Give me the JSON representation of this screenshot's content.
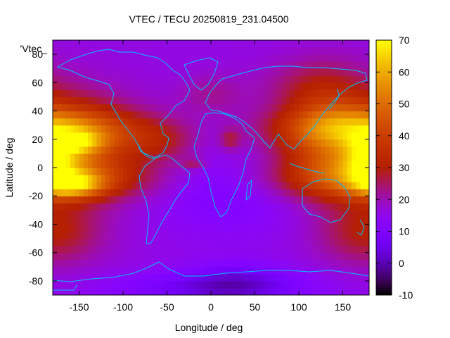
{
  "chart_data": {
    "type": "heatmap",
    "title": "VTEC / TECU 20250819_231.04500",
    "xlabel": "Longitude / deg",
    "ylabel": "Latitude / deg",
    "legend_label": "'Vtec_",
    "xlim": [
      -180,
      180
    ],
    "ylim": [
      -90,
      90
    ],
    "x_ticks": [
      -150,
      -100,
      -50,
      0,
      50,
      100,
      150
    ],
    "y_ticks": [
      -80,
      -60,
      -40,
      -20,
      0,
      20,
      40,
      60,
      80
    ],
    "colorbar": {
      "range": [
        -10,
        70
      ],
      "ticks": [
        -10,
        0,
        10,
        20,
        30,
        40,
        50,
        60,
        70
      ]
    },
    "colormap": "gnuplot-pm3d",
    "coastline_color": "#00c0ff",
    "grid": false,
    "grid_step_deg": 5,
    "features": [
      {
        "kind": "background",
        "value": 16
      },
      {
        "kind": "blob",
        "lon": -180,
        "lat": 28,
        "sx": 70,
        "sy": 10,
        "amp": 22
      },
      {
        "kind": "blob",
        "lon": -180,
        "lat": -8,
        "sx": 70,
        "sy": 10,
        "amp": 24
      },
      {
        "kind": "blob",
        "lon": -155,
        "lat": 18,
        "sx": 25,
        "sy": 6,
        "amp": 22
      },
      {
        "kind": "blob",
        "lon": -160,
        "lat": -12,
        "sx": 25,
        "sy": 6,
        "amp": 28
      },
      {
        "kind": "blob",
        "lon": -170,
        "lat": 5,
        "sx": 45,
        "sy": 8,
        "amp": 6
      },
      {
        "kind": "blob",
        "lon": 180,
        "lat": 18,
        "sx": 60,
        "sy": 24,
        "amp": 26
      },
      {
        "kind": "blob",
        "lon": 178,
        "lat": 5,
        "sx": 18,
        "sy": 10,
        "amp": 18
      },
      {
        "kind": "blob",
        "lon": 120,
        "lat": 25,
        "sx": 30,
        "sy": 25,
        "amp": 8
      },
      {
        "kind": "blob",
        "lon": 140,
        "lat": 50,
        "sx": 35,
        "sy": 20,
        "amp": 6
      },
      {
        "kind": "blob",
        "lon": -180,
        "lat": -45,
        "sx": 40,
        "sy": 16,
        "amp": 14
      },
      {
        "kind": "blob",
        "lon": -60,
        "lat": 18,
        "sx": 30,
        "sy": 10,
        "amp": 10
      },
      {
        "kind": "blob",
        "lon": 22,
        "lat": 20,
        "sx": 8,
        "sy": 5,
        "amp": 10
      },
      {
        "kind": "blob",
        "lon": -20,
        "lat": 3,
        "sx": 10,
        "sy": 3,
        "amp": 8
      },
      {
        "kind": "blob",
        "lon": 0,
        "lat": 52,
        "sx": 25,
        "sy": 10,
        "amp": 6
      },
      {
        "kind": "blob",
        "lon": 100,
        "lat": 60,
        "sx": 40,
        "sy": 12,
        "amp": 4
      },
      {
        "kind": "blob",
        "lon": 20,
        "lat": -20,
        "sx": 60,
        "sy": 20,
        "amp": -6
      },
      {
        "kind": "blob",
        "lon": 0,
        "lat": -85,
        "sx": 80,
        "sy": 8,
        "amp": -10
      },
      {
        "kind": "blob",
        "lon": 30,
        "lat": -80,
        "sx": 40,
        "sy": 10,
        "amp": -8
      }
    ]
  }
}
